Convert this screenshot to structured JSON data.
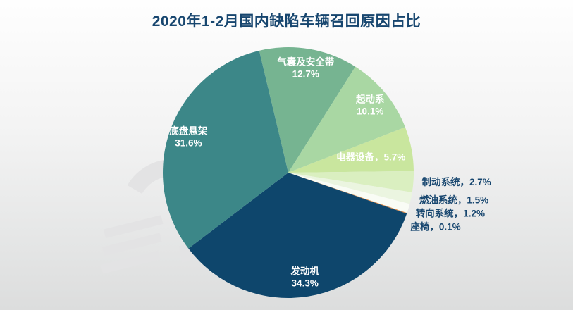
{
  "page": {
    "background_top": "#FEFEFE",
    "background_bottom": "#DCDDDD"
  },
  "chart_data": {
    "type": "pie",
    "title": "2020年1-2月国内缺陷车辆召回原因占比",
    "title_color": "#17466F",
    "center": [
      409,
      245
    ],
    "radius": 178,
    "start_angle_deg": -13.4,
    "legend": "none",
    "inside_label_color": "#FFFFFF",
    "outside_label_color": "#17466F",
    "slices": [
      {
        "name": "气囊及安全带",
        "value": 12.7,
        "display": "12.7%",
        "color": "#76B491",
        "label": "气囊及安全带\n12.7%",
        "label_pos": "inside"
      },
      {
        "name": "起动系",
        "value": 10.1,
        "display": "10.1%",
        "color": "#A9D7A3",
        "label": "起动系\n10.1%",
        "label_pos": "inside"
      },
      {
        "name": "电器设备",
        "value": 5.7,
        "display": "5.7%",
        "color": "#C9E69E",
        "label": "电器设备，5.7%",
        "label_pos": "inside"
      },
      {
        "name": "制动系统",
        "value": 2.7,
        "display": "2.7%",
        "color": "#DAEFC0",
        "label": "制动系统，2.7%",
        "label_pos": "outside"
      },
      {
        "name": "燃油系统",
        "value": 1.5,
        "display": "1.5%",
        "color": "#EBF5E0",
        "label": "燃油系统，1.5%",
        "label_pos": "outside"
      },
      {
        "name": "转向系统",
        "value": 1.2,
        "display": "1.2%",
        "color": "#F9FCF5",
        "label": "转向系统，1.2%",
        "label_pos": "outside"
      },
      {
        "name": "座椅",
        "value": 0.1,
        "display": "0.1%",
        "color": "#DC8743",
        "label": "座椅，0.1%",
        "label_pos": "outside"
      },
      {
        "name": "发动机",
        "value": 34.3,
        "display": "34.3%",
        "color": "#0E466C",
        "label": "发动机\n34.3%",
        "label_pos": "inside"
      },
      {
        "name": "底盘悬架",
        "value": 31.6,
        "display": "31.6%",
        "color": "#3C8788",
        "label": "底盘悬架\n31.6%",
        "label_pos": "inside"
      }
    ]
  }
}
